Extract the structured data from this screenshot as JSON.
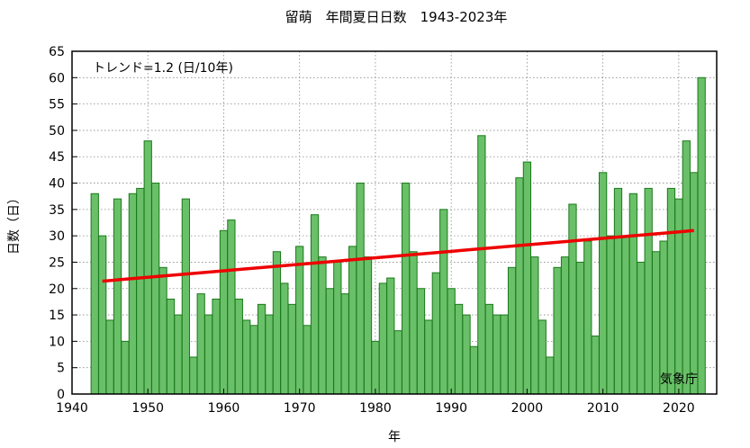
{
  "chart_data": {
    "type": "bar",
    "title": "留萌　年間夏日日数　1943-2023年",
    "xlabel": "年",
    "ylabel": "日数（日）",
    "trend_label": "トレンド=1.2 (日/10年)",
    "source_label": "気象庁",
    "xlim": [
      1940,
      2025
    ],
    "ylim": [
      0,
      65
    ],
    "x_ticks": [
      1940,
      1950,
      1960,
      1970,
      1980,
      1990,
      2000,
      2010,
      2020
    ],
    "y_ticks": [
      0,
      5,
      10,
      15,
      20,
      25,
      30,
      35,
      40,
      45,
      50,
      55,
      60,
      65
    ],
    "grid": true,
    "colors": {
      "bar_fill": "#6abf69",
      "bar_stroke": "#1a7a1a",
      "trend": "#ee0000"
    },
    "years": [
      1943,
      1944,
      1945,
      1946,
      1947,
      1948,
      1949,
      1950,
      1951,
      1952,
      1953,
      1954,
      1955,
      1956,
      1957,
      1958,
      1959,
      1960,
      1961,
      1962,
      1963,
      1964,
      1965,
      1966,
      1967,
      1968,
      1969,
      1970,
      1971,
      1972,
      1973,
      1974,
      1975,
      1976,
      1977,
      1978,
      1979,
      1980,
      1981,
      1982,
      1983,
      1984,
      1985,
      1986,
      1987,
      1988,
      1989,
      1990,
      1991,
      1992,
      1993,
      1994,
      1995,
      1996,
      1997,
      1998,
      1999,
      2000,
      2001,
      2002,
      2003,
      2004,
      2005,
      2006,
      2007,
      2008,
      2009,
      2010,
      2011,
      2012,
      2013,
      2014,
      2015,
      2016,
      2017,
      2018,
      2019,
      2020,
      2021,
      2022,
      2023
    ],
    "values": [
      38,
      30,
      14,
      37,
      10,
      38,
      39,
      48,
      40,
      24,
      18,
      15,
      37,
      7,
      19,
      15,
      18,
      31,
      33,
      18,
      14,
      13,
      17,
      15,
      27,
      21,
      17,
      28,
      13,
      34,
      26,
      20,
      25,
      19,
      28,
      40,
      26,
      10,
      21,
      22,
      12,
      40,
      27,
      20,
      14,
      23,
      35,
      20,
      17,
      15,
      9,
      49,
      17,
      15,
      15,
      24,
      41,
      44,
      26,
      14,
      7,
      24,
      26,
      36,
      25,
      29,
      11,
      42,
      30,
      39,
      30,
      38,
      25,
      39,
      27,
      29,
      39,
      37,
      48,
      42,
      60
    ],
    "trend": {
      "start": [
        1944,
        21.4
      ],
      "end": [
        2022,
        31.0
      ]
    }
  }
}
